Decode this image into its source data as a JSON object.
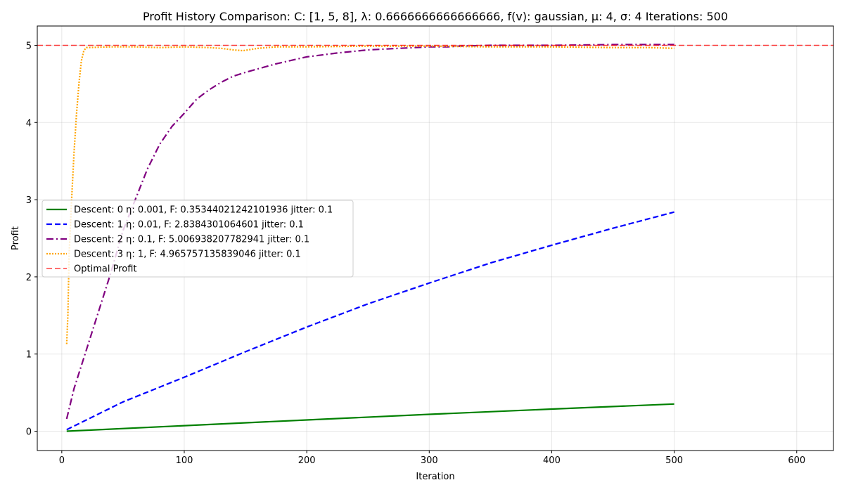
{
  "chart_data": {
    "type": "line",
    "title": "Profit History Comparison: C: [1, 5, 8], λ: 0.6666666666666666, f(v): gaussian, μ: 4, σ: 4 Iterations: 500",
    "xlabel": "Iteration",
    "ylabel": "Profit",
    "xlim": [
      -20,
      630
    ],
    "ylim": [
      -0.25,
      5.25
    ],
    "xticks": [
      0,
      100,
      200,
      300,
      400,
      500,
      600
    ],
    "yticks": [
      0,
      1,
      2,
      3,
      4,
      5
    ],
    "grid": true,
    "legend_position": "center-left",
    "series": [
      {
        "name": "Descent: 0 η: 0.001, F: 0.35344021242101936 jitter: 0.1",
        "color": "#008000",
        "dash": "solid",
        "x": [
          4,
          100,
          200,
          300,
          400,
          500
        ],
        "y": [
          0.0,
          0.072,
          0.146,
          0.219,
          0.287,
          0.353
        ]
      },
      {
        "name": "Descent: 1 η: 0.01, F: 2.8384301064601 jitter: 0.1",
        "color": "#0000ff",
        "dash": "dashed",
        "x": [
          4,
          50,
          100,
          150,
          200,
          250,
          300,
          350,
          400,
          450,
          500
        ],
        "y": [
          0.02,
          0.38,
          0.7,
          1.03,
          1.35,
          1.65,
          1.92,
          2.18,
          2.41,
          2.63,
          2.84
        ]
      },
      {
        "name": "Descent: 2 η: 0.1, F: 5.006938207782941 jitter: 0.1",
        "color": "#800080",
        "dash": "dashdot",
        "x": [
          4,
          10,
          20,
          30,
          40,
          50,
          60,
          70,
          80,
          90,
          100,
          110,
          120,
          130,
          140,
          150,
          175,
          200,
          225,
          250,
          275,
          300,
          315,
          325,
          350,
          400,
          450,
          500
        ],
        "y": [
          0.16,
          0.55,
          1.05,
          1.55,
          2.05,
          2.6,
          3.0,
          3.4,
          3.72,
          3.95,
          4.12,
          4.3,
          4.42,
          4.52,
          4.6,
          4.65,
          4.76,
          4.85,
          4.9,
          4.94,
          4.96,
          4.98,
          4.98,
          4.99,
          5.0,
          5.0,
          5.01,
          5.01
        ]
      },
      {
        "name": "Descent: 3 η: 1, F: 4.965757135839046 jitter: 0.1",
        "color": "#ffa500",
        "dash": "dotted",
        "x": [
          4,
          5,
          6,
          8,
          10,
          12,
          14,
          16,
          18,
          20,
          40,
          60,
          80,
          100,
          120,
          130,
          140,
          148,
          160,
          175,
          200,
          250,
          300,
          350,
          400,
          450,
          480,
          500
        ],
        "y": [
          1.13,
          1.5,
          2.3,
          3.0,
          3.6,
          4.1,
          4.5,
          4.8,
          4.93,
          4.97,
          4.98,
          4.98,
          4.97,
          4.98,
          4.97,
          4.96,
          4.94,
          4.93,
          4.96,
          4.98,
          4.98,
          4.99,
          4.99,
          4.98,
          4.98,
          4.97,
          4.97,
          4.96
        ]
      },
      {
        "name": "Optimal Profit",
        "color": "#ff0000",
        "dash": "hline",
        "y": [
          5.0
        ]
      }
    ]
  }
}
